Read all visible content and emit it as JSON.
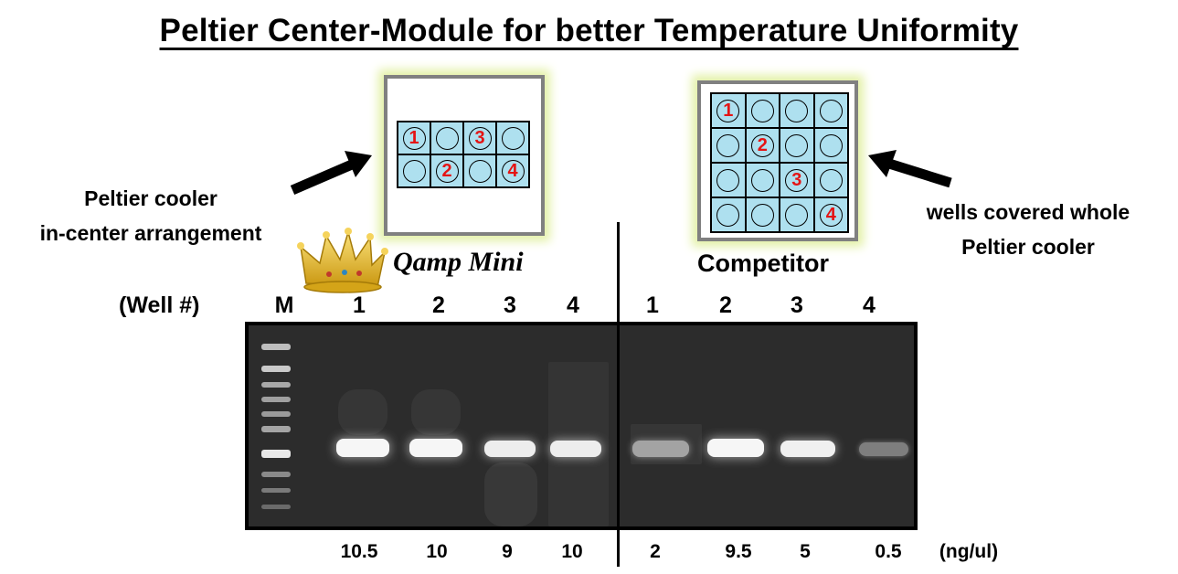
{
  "title": "Peltier Center-Module for better Temperature Uniformity",
  "left_module": {
    "caption_line1": "Peltier cooler",
    "caption_line2": "in-center arrangement",
    "wells": [
      "1",
      "",
      "3",
      "",
      "",
      "2",
      "",
      "4"
    ]
  },
  "right_module": {
    "caption_line1": "wells covered whole",
    "caption_line2": "Peltier cooler",
    "wells": [
      "1",
      "",
      "",
      "",
      "",
      "2",
      "",
      "",
      "",
      "",
      "3",
      "",
      "",
      "",
      "",
      "4"
    ]
  },
  "brand_label": "Qamp Mini",
  "competitor_label": "Competitor",
  "well_label": "(Well #)",
  "marker_label": "M",
  "lanes_left": [
    "1",
    "2",
    "3",
    "4"
  ],
  "lanes_right": [
    "1",
    "2",
    "3",
    "4"
  ],
  "concentrations_left": [
    "10.5",
    "10",
    "9",
    "10"
  ],
  "concentrations_right": [
    "2",
    "9.5",
    "5",
    "0.5"
  ],
  "unit": "(ng/ul)",
  "band_intensity_left": [
    0.95,
    0.95,
    0.9,
    0.9
  ],
  "band_intensity_right": [
    0.5,
    0.95,
    0.92,
    0.3
  ],
  "colors": {
    "well_fill": "#aee0ef",
    "well_number": "#e41414",
    "module_glow": "#e4f1a8",
    "module_border": "#808080",
    "gel_background": "#2c2c2c"
  },
  "icons": {
    "crown": "crown-icon",
    "arrow_left_module": "arrow-right-icon",
    "arrow_right_module": "arrow-left-icon"
  }
}
